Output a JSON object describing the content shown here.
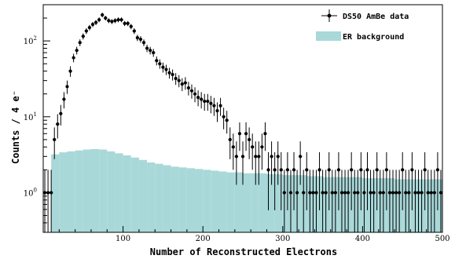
{
  "chart_data": {
    "type": "line",
    "xlabel": "Number of Reconstructed Electrons",
    "ylabel": "Counts / 4 e⁻",
    "xlim": [
      0,
      500
    ],
    "ylim": [
      0.3,
      300
    ],
    "yscale": "log",
    "xticks": [
      "100",
      "200",
      "300",
      "400",
      "500"
    ],
    "yticks": [
      {
        "base": "10",
        "exp": "0",
        "value": 1
      },
      {
        "base": "10",
        "exp": "1",
        "value": 10
      },
      {
        "base": "10",
        "exp": "2",
        "value": 100
      }
    ],
    "legend_position": "top-right",
    "grid": false,
    "series": [
      {
        "name": "DS50 AmBe data",
        "style": "points-with-errorbars",
        "color": "#000000",
        "bin_width": 4,
        "x": [
          2,
          6,
          10,
          14,
          18,
          22,
          26,
          30,
          34,
          38,
          42,
          46,
          50,
          54,
          58,
          62,
          66,
          70,
          74,
          78,
          82,
          86,
          90,
          94,
          98,
          102,
          106,
          110,
          114,
          118,
          122,
          126,
          130,
          134,
          138,
          142,
          146,
          150,
          154,
          158,
          162,
          166,
          170,
          174,
          178,
          182,
          186,
          190,
          194,
          198,
          202,
          206,
          210,
          214,
          218,
          222,
          226,
          230,
          234,
          238,
          242,
          246,
          250,
          254,
          258,
          262,
          266,
          270,
          274,
          278,
          282,
          286,
          290,
          294,
          298,
          302,
          306,
          310,
          314,
          318,
          322,
          326,
          330,
          334,
          338,
          342,
          346,
          350,
          354,
          358,
          362,
          366,
          370,
          374,
          378,
          382,
          386,
          390,
          394,
          398,
          402,
          406,
          410,
          414,
          418,
          422,
          426,
          430,
          434,
          438,
          442,
          446,
          450,
          454,
          458,
          462,
          466,
          470,
          474,
          478,
          482,
          486,
          490,
          494,
          498
        ],
        "y": [
          1,
          1,
          1,
          5,
          8,
          11,
          17,
          25,
          40,
          60,
          75,
          95,
          115,
          135,
          150,
          165,
          175,
          190,
          220,
          200,
          185,
          180,
          185,
          190,
          190,
          170,
          170,
          155,
          135,
          110,
          105,
          95,
          80,
          75,
          70,
          55,
          50,
          45,
          42,
          38,
          36,
          32,
          30,
          27,
          28,
          24,
          22,
          20,
          18,
          17,
          16,
          16,
          15,
          14,
          12,
          14,
          10,
          9,
          5,
          4,
          3,
          6,
          3,
          6,
          5,
          4,
          3,
          3,
          4,
          6,
          2,
          3,
          2,
          3,
          2,
          1,
          2,
          1,
          2,
          1,
          3,
          1,
          2,
          1,
          1,
          1,
          2,
          1,
          1,
          2,
          1,
          1,
          2,
          1,
          1,
          1,
          2,
          1,
          1,
          2,
          1,
          2,
          1,
          1,
          2,
          1,
          1,
          2,
          1,
          1,
          1,
          1,
          2,
          1,
          1,
          2,
          1,
          1,
          1,
          2,
          1,
          1,
          1,
          2,
          1
        ]
      },
      {
        "name": "ER background",
        "style": "filled-histogram",
        "color": "#a9d8d9",
        "x": [
          10,
          20,
          30,
          40,
          50,
          60,
          70,
          80,
          90,
          100,
          110,
          120,
          130,
          140,
          150,
          160,
          170,
          180,
          190,
          200,
          210,
          220,
          230,
          240,
          250,
          260,
          270,
          280,
          290,
          300,
          310,
          320,
          330,
          340,
          350,
          360,
          370,
          380,
          390,
          400,
          410,
          420,
          430,
          440,
          450,
          460,
          470,
          480,
          490,
          500
        ],
        "y": [
          2.6,
          3.2,
          3.4,
          3.5,
          3.6,
          3.7,
          3.75,
          3.7,
          3.5,
          3.3,
          3.1,
          2.9,
          2.7,
          2.5,
          2.4,
          2.3,
          2.2,
          2.15,
          2.1,
          2.05,
          2.0,
          1.95,
          1.9,
          1.85,
          1.85,
          1.8,
          1.8,
          1.8,
          1.75,
          1.75,
          1.7,
          1.7,
          1.7,
          1.65,
          1.65,
          1.6,
          1.6,
          1.6,
          1.6,
          1.6,
          1.55,
          1.55,
          1.55,
          1.55,
          1.5,
          1.5,
          1.5,
          1.5,
          1.5,
          1.5
        ]
      }
    ]
  }
}
